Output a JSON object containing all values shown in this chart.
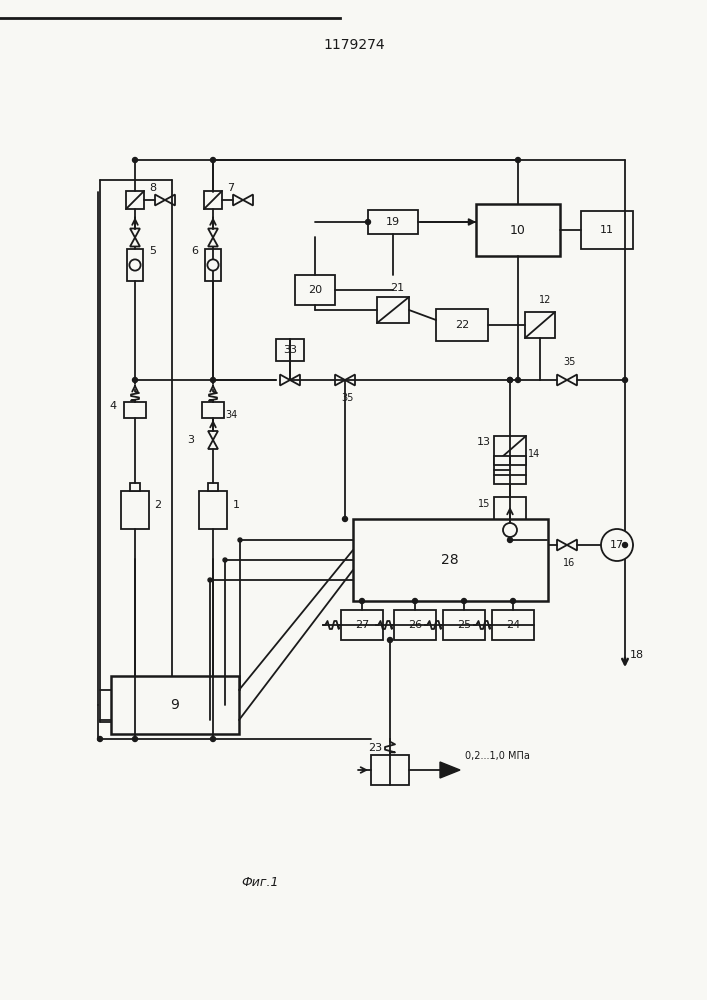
{
  "title": "1179274",
  "caption": "Фиг.1",
  "bg_color": "#f8f8f4",
  "lc": "#1a1a1a",
  "lw": 1.3,
  "lw2": 1.8,
  "title_fs": 10,
  "caption_fs": 9
}
